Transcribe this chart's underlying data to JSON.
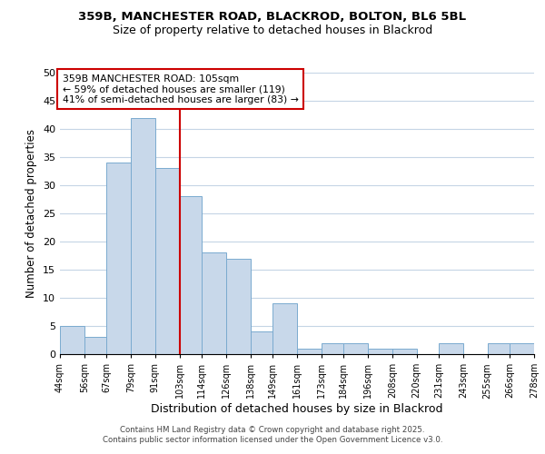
{
  "title_line1": "359B, MANCHESTER ROAD, BLACKROD, BOLTON, BL6 5BL",
  "title_line2": "Size of property relative to detached houses in Blackrod",
  "xlabel": "Distribution of detached houses by size in Blackrod",
  "ylabel": "Number of detached properties",
  "bar_edges": [
    44,
    56,
    67,
    79,
    91,
    103,
    114,
    126,
    138,
    149,
    161,
    173,
    184,
    196,
    208,
    220,
    231,
    243,
    255,
    266,
    278
  ],
  "bar_heights": [
    5,
    3,
    34,
    42,
    33,
    28,
    18,
    17,
    4,
    9,
    1,
    2,
    2,
    1,
    1,
    0,
    2,
    0,
    2,
    2
  ],
  "bar_color": "#c8d8ea",
  "bar_edgecolor": "#7aaacf",
  "vline_x": 103,
  "vline_color": "#cc0000",
  "ylim": [
    0,
    50
  ],
  "yticks": [
    0,
    5,
    10,
    15,
    20,
    25,
    30,
    35,
    40,
    45,
    50
  ],
  "tick_labels": [
    "44sqm",
    "56sqm",
    "67sqm",
    "79sqm",
    "91sqm",
    "103sqm",
    "114sqm",
    "126sqm",
    "138sqm",
    "149sqm",
    "161sqm",
    "173sqm",
    "184sqm",
    "196sqm",
    "208sqm",
    "220sqm",
    "231sqm",
    "243sqm",
    "255sqm",
    "266sqm",
    "278sqm"
  ],
  "annotation_title": "359B MANCHESTER ROAD: 105sqm",
  "annotation_line1": "← 59% of detached houses are smaller (119)",
  "annotation_line2": "41% of semi-detached houses are larger (83) →",
  "footer_line1": "Contains HM Land Registry data © Crown copyright and database right 2025.",
  "footer_line2": "Contains public sector information licensed under the Open Government Licence v3.0.",
  "background_color": "#ffffff",
  "grid_color": "#c5d5e5"
}
